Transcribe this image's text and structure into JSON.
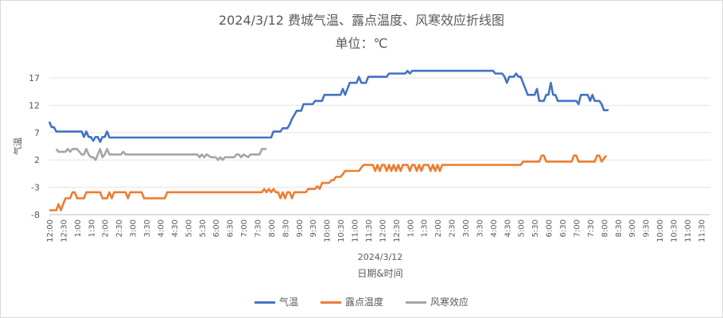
{
  "chart_data": {
    "type": "line",
    "title": "2024/3/12 费城气温、露点温度、风寒效应折线图",
    "subtitle": "单位：℃",
    "xlabel": "日期&时间",
    "x_group_label": "2024/3/12",
    "ylabel": "气温",
    "ylim": [
      -8,
      17
    ],
    "yticks": [
      -8,
      -3,
      2,
      7,
      12,
      17
    ],
    "grid": true,
    "legend_position": "bottom",
    "x_tick_labels": [
      "12:00",
      "12:30",
      "1:00",
      "1:30",
      "2:00",
      "2:30",
      "3:00",
      "3:30",
      "4:00",
      "4:30",
      "5:00",
      "5:30",
      "6:00",
      "6:30",
      "7:00",
      "7:30",
      "8:00",
      "8:30",
      "9:00",
      "9:30",
      "10:00",
      "10:30",
      "11:00",
      "11:30",
      "12:00",
      "12:30",
      "1:00",
      "1:30",
      "2:00",
      "2:30",
      "3:00",
      "3:30",
      "4:00",
      "4:30",
      "5:00",
      "5:30",
      "6:00",
      "6:30",
      "7:00",
      "7:30",
      "8:00",
      "8:30",
      "9:00",
      "9:30",
      "10:00",
      "10:30",
      "11:00",
      "11:30"
    ],
    "x_range_minutes": [
      0,
      1430
    ],
    "series": [
      {
        "name": "气温",
        "color": "#4472c4",
        "points": [
          [
            0,
            9
          ],
          [
            5,
            8
          ],
          [
            10,
            8
          ],
          [
            15,
            7.2
          ],
          [
            30,
            7.2
          ],
          [
            45,
            7.2
          ],
          [
            60,
            7.2
          ],
          [
            70,
            7.2
          ],
          [
            75,
            6.2
          ],
          [
            80,
            7.2
          ],
          [
            85,
            6.2
          ],
          [
            90,
            6.2
          ],
          [
            95,
            5.5
          ],
          [
            100,
            6.2
          ],
          [
            105,
            6.2
          ],
          [
            110,
            5.3
          ],
          [
            115,
            6.2
          ],
          [
            120,
            6.2
          ],
          [
            125,
            7.2
          ],
          [
            130,
            6.1
          ],
          [
            150,
            6.1
          ],
          [
            200,
            6.1
          ],
          [
            300,
            6.1
          ],
          [
            400,
            6.1
          ],
          [
            450,
            6.1
          ],
          [
            480,
            6.1
          ],
          [
            485,
            7.2
          ],
          [
            500,
            7.2
          ],
          [
            505,
            7.8
          ],
          [
            515,
            7.8
          ],
          [
            520,
            8.5
          ],
          [
            525,
            9.5
          ],
          [
            530,
            10.2
          ],
          [
            535,
            11
          ],
          [
            545,
            11
          ],
          [
            550,
            12.2
          ],
          [
            560,
            12.2
          ],
          [
            570,
            12.2
          ],
          [
            575,
            12.8
          ],
          [
            590,
            12.8
          ],
          [
            595,
            13.9
          ],
          [
            620,
            13.9
          ],
          [
            630,
            13.9
          ],
          [
            635,
            15
          ],
          [
            640,
            13.9
          ],
          [
            645,
            15
          ],
          [
            650,
            16.1
          ],
          [
            665,
            16.1
          ],
          [
            670,
            17.2
          ],
          [
            675,
            16.1
          ],
          [
            685,
            16.1
          ],
          [
            690,
            17.2
          ],
          [
            720,
            17.2
          ],
          [
            730,
            17.2
          ],
          [
            735,
            17.8
          ],
          [
            760,
            17.8
          ],
          [
            770,
            17.8
          ],
          [
            775,
            18.3
          ],
          [
            780,
            17.8
          ],
          [
            785,
            18.3
          ],
          [
            800,
            18.3
          ],
          [
            900,
            18.3
          ],
          [
            950,
            18.3
          ],
          [
            960,
            18.3
          ],
          [
            965,
            17.8
          ],
          [
            980,
            17.8
          ],
          [
            985,
            17.2
          ],
          [
            990,
            16.1
          ],
          [
            995,
            17.2
          ],
          [
            1005,
            17.2
          ],
          [
            1010,
            17.8
          ],
          [
            1015,
            17.2
          ],
          [
            1020,
            17.2
          ],
          [
            1025,
            16.1
          ],
          [
            1030,
            15
          ],
          [
            1035,
            13.9
          ],
          [
            1050,
            13.9
          ],
          [
            1055,
            15
          ],
          [
            1060,
            12.8
          ],
          [
            1070,
            12.8
          ],
          [
            1075,
            13.9
          ],
          [
            1080,
            13.9
          ],
          [
            1085,
            16.1
          ],
          [
            1090,
            13.9
          ],
          [
            1095,
            13.9
          ],
          [
            1100,
            12.8
          ],
          [
            1140,
            12.8
          ],
          [
            1145,
            12.2
          ],
          [
            1150,
            13.9
          ],
          [
            1165,
            13.9
          ],
          [
            1170,
            12.8
          ],
          [
            1175,
            13.9
          ],
          [
            1180,
            12.8
          ],
          [
            1190,
            12.8
          ],
          [
            1195,
            12.2
          ],
          [
            1200,
            11.1
          ],
          [
            1210,
            11.1
          ]
        ]
      },
      {
        "name": "露点温度",
        "color": "#ed7d31",
        "points": [
          [
            0,
            -7.2
          ],
          [
            15,
            -7.2
          ],
          [
            20,
            -6.1
          ],
          [
            25,
            -7.2
          ],
          [
            30,
            -6.1
          ],
          [
            35,
            -5
          ],
          [
            45,
            -5
          ],
          [
            50,
            -3.9
          ],
          [
            55,
            -3.9
          ],
          [
            60,
            -5
          ],
          [
            75,
            -5
          ],
          [
            80,
            -3.9
          ],
          [
            100,
            -3.9
          ],
          [
            105,
            -3.9
          ],
          [
            110,
            -3.9
          ],
          [
            115,
            -5
          ],
          [
            125,
            -5
          ],
          [
            130,
            -3.9
          ],
          [
            135,
            -5
          ],
          [
            140,
            -3.9
          ],
          [
            165,
            -3.9
          ],
          [
            170,
            -5
          ],
          [
            175,
            -3.9
          ],
          [
            200,
            -3.9
          ],
          [
            205,
            -5
          ],
          [
            250,
            -5
          ],
          [
            255,
            -3.9
          ],
          [
            300,
            -3.9
          ],
          [
            450,
            -3.9
          ],
          [
            460,
            -3.9
          ],
          [
            465,
            -3.3
          ],
          [
            470,
            -3.9
          ],
          [
            475,
            -3.3
          ],
          [
            480,
            -3.9
          ],
          [
            485,
            -3.3
          ],
          [
            490,
            -3.9
          ],
          [
            495,
            -3.9
          ],
          [
            500,
            -5
          ],
          [
            505,
            -3.9
          ],
          [
            510,
            -5
          ],
          [
            515,
            -3.9
          ],
          [
            520,
            -3.9
          ],
          [
            525,
            -5
          ],
          [
            530,
            -3.9
          ],
          [
            555,
            -3.9
          ],
          [
            560,
            -3.3
          ],
          [
            575,
            -3.3
          ],
          [
            580,
            -2.8
          ],
          [
            585,
            -3.3
          ],
          [
            590,
            -2.2
          ],
          [
            600,
            -2.2
          ],
          [
            605,
            -2.2
          ],
          [
            610,
            -1.7
          ],
          [
            615,
            -1.7
          ],
          [
            620,
            -1.1
          ],
          [
            630,
            -1.1
          ],
          [
            635,
            -0.6
          ],
          [
            640,
            0
          ],
          [
            660,
            0
          ],
          [
            670,
            0
          ],
          [
            675,
            0.6
          ],
          [
            680,
            1.1
          ],
          [
            700,
            1.1
          ],
          [
            705,
            0
          ],
          [
            710,
            1.1
          ],
          [
            715,
            0
          ],
          [
            720,
            1.1
          ],
          [
            725,
            1.1
          ],
          [
            730,
            0
          ],
          [
            735,
            1.1
          ],
          [
            740,
            0
          ],
          [
            745,
            1.1
          ],
          [
            750,
            0
          ],
          [
            755,
            1.1
          ],
          [
            760,
            0
          ],
          [
            765,
            1.1
          ],
          [
            775,
            1.1
          ],
          [
            780,
            0
          ],
          [
            785,
            1.1
          ],
          [
            790,
            1.1
          ],
          [
            795,
            0
          ],
          [
            800,
            1.1
          ],
          [
            805,
            0
          ],
          [
            810,
            1.1
          ],
          [
            820,
            1.1
          ],
          [
            825,
            0
          ],
          [
            830,
            1.1
          ],
          [
            835,
            0
          ],
          [
            840,
            1.1
          ],
          [
            845,
            0
          ],
          [
            850,
            1.1
          ],
          [
            860,
            1.1
          ],
          [
            900,
            1.1
          ],
          [
            1000,
            1.1
          ],
          [
            1020,
            1.1
          ],
          [
            1025,
            1.7
          ],
          [
            1060,
            1.7
          ],
          [
            1065,
            2.8
          ],
          [
            1070,
            2.8
          ],
          [
            1075,
            1.7
          ],
          [
            1100,
            1.7
          ],
          [
            1130,
            1.7
          ],
          [
            1135,
            2.8
          ],
          [
            1140,
            2.8
          ],
          [
            1145,
            1.7
          ],
          [
            1175,
            1.7
          ],
          [
            1180,
            1.7
          ],
          [
            1185,
            2.8
          ],
          [
            1190,
            2.8
          ],
          [
            1195,
            1.7
          ],
          [
            1205,
            2.8
          ]
        ]
      },
      {
        "name": "风寒效应",
        "color": "#a5a5a5",
        "points": [
          [
            15,
            4
          ],
          [
            20,
            3.5
          ],
          [
            25,
            3.5
          ],
          [
            35,
            3.5
          ],
          [
            40,
            4
          ],
          [
            45,
            3.5
          ],
          [
            50,
            4
          ],
          [
            60,
            4
          ],
          [
            65,
            3.5
          ],
          [
            70,
            3
          ],
          [
            75,
            3
          ],
          [
            80,
            4
          ],
          [
            85,
            3
          ],
          [
            90,
            2.5
          ],
          [
            95,
            2.5
          ],
          [
            100,
            2
          ],
          [
            105,
            3
          ],
          [
            110,
            4
          ],
          [
            115,
            2.5
          ],
          [
            120,
            3
          ],
          [
            125,
            4
          ],
          [
            130,
            3
          ],
          [
            150,
            3
          ],
          [
            155,
            3
          ],
          [
            160,
            3.5
          ],
          [
            165,
            3
          ],
          [
            200,
            3
          ],
          [
            300,
            3
          ],
          [
            320,
            3
          ],
          [
            325,
            2.5
          ],
          [
            330,
            3
          ],
          [
            335,
            2.5
          ],
          [
            340,
            3
          ],
          [
            350,
            2.5
          ],
          [
            360,
            2.5
          ],
          [
            365,
            2
          ],
          [
            370,
            2.5
          ],
          [
            375,
            2
          ],
          [
            380,
            2.5
          ],
          [
            400,
            2.5
          ],
          [
            405,
            3
          ],
          [
            410,
            3
          ],
          [
            415,
            2.5
          ],
          [
            420,
            3
          ],
          [
            430,
            2.5
          ],
          [
            435,
            3
          ],
          [
            450,
            3
          ],
          [
            455,
            3
          ],
          [
            460,
            4
          ],
          [
            470,
            4
          ]
        ]
      }
    ]
  }
}
